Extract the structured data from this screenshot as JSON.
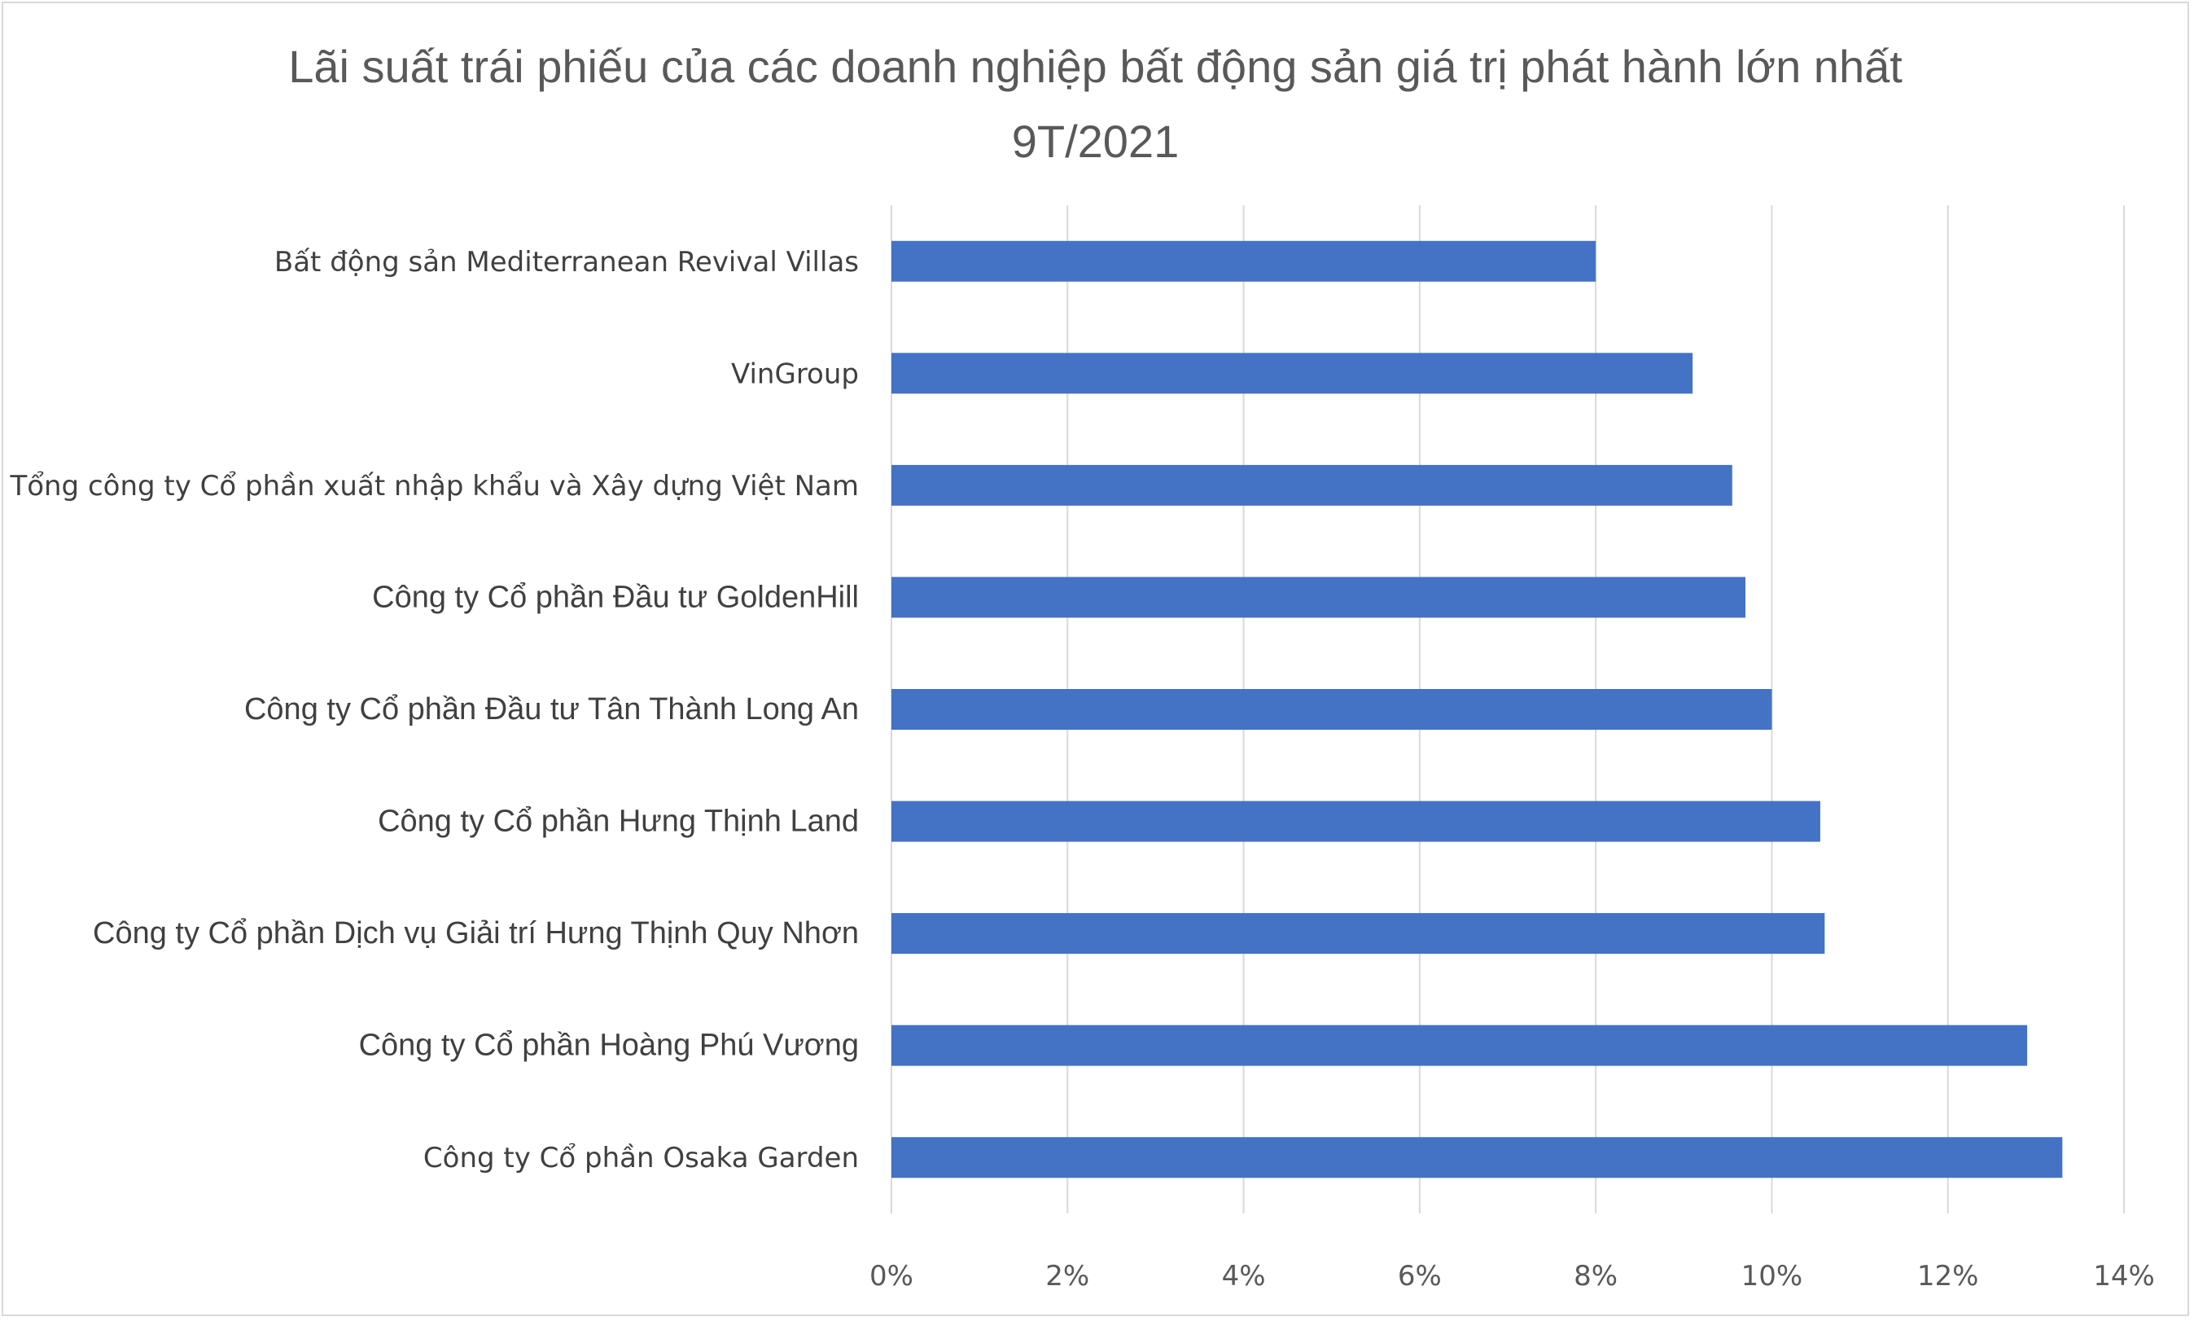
{
  "chart_data": {
    "type": "bar",
    "orientation": "horizontal",
    "title_line1": "Lãi suất trái phiếu của các doanh nghiệp bất động sản giá trị phát hành lớn nhất",
    "title_line2": "9T/2021",
    "categories": [
      "Bất động sản Mediterranean Revival Villas",
      "VinGroup",
      "Tổng công ty Cổ phần xuất nhập khẩu và Xây dựng Việt Nam",
      "Công ty Cổ phần Đầu tư GoldenHill",
      "Công ty Cổ phần Đầu tư Tân Thành Long An",
      "Công ty Cổ phần Hưng Thịnh Land",
      "Công ty Cổ phần Dịch vụ Giải trí Hưng Thịnh Quy Nhơn",
      "Công ty Cổ phần Hoàng Phú Vương",
      "Công ty Cổ phần Osaka Garden"
    ],
    "values": [
      8.0,
      9.1,
      9.55,
      9.7,
      10.0,
      10.55,
      10.6,
      12.9,
      13.3
    ],
    "xlim": [
      0,
      14
    ],
    "x_ticks": [
      "0%",
      "2%",
      "4%",
      "6%",
      "8%",
      "10%",
      "12%",
      "14%"
    ],
    "grid": true,
    "legend": "none",
    "bar_color": "#4472c4"
  }
}
